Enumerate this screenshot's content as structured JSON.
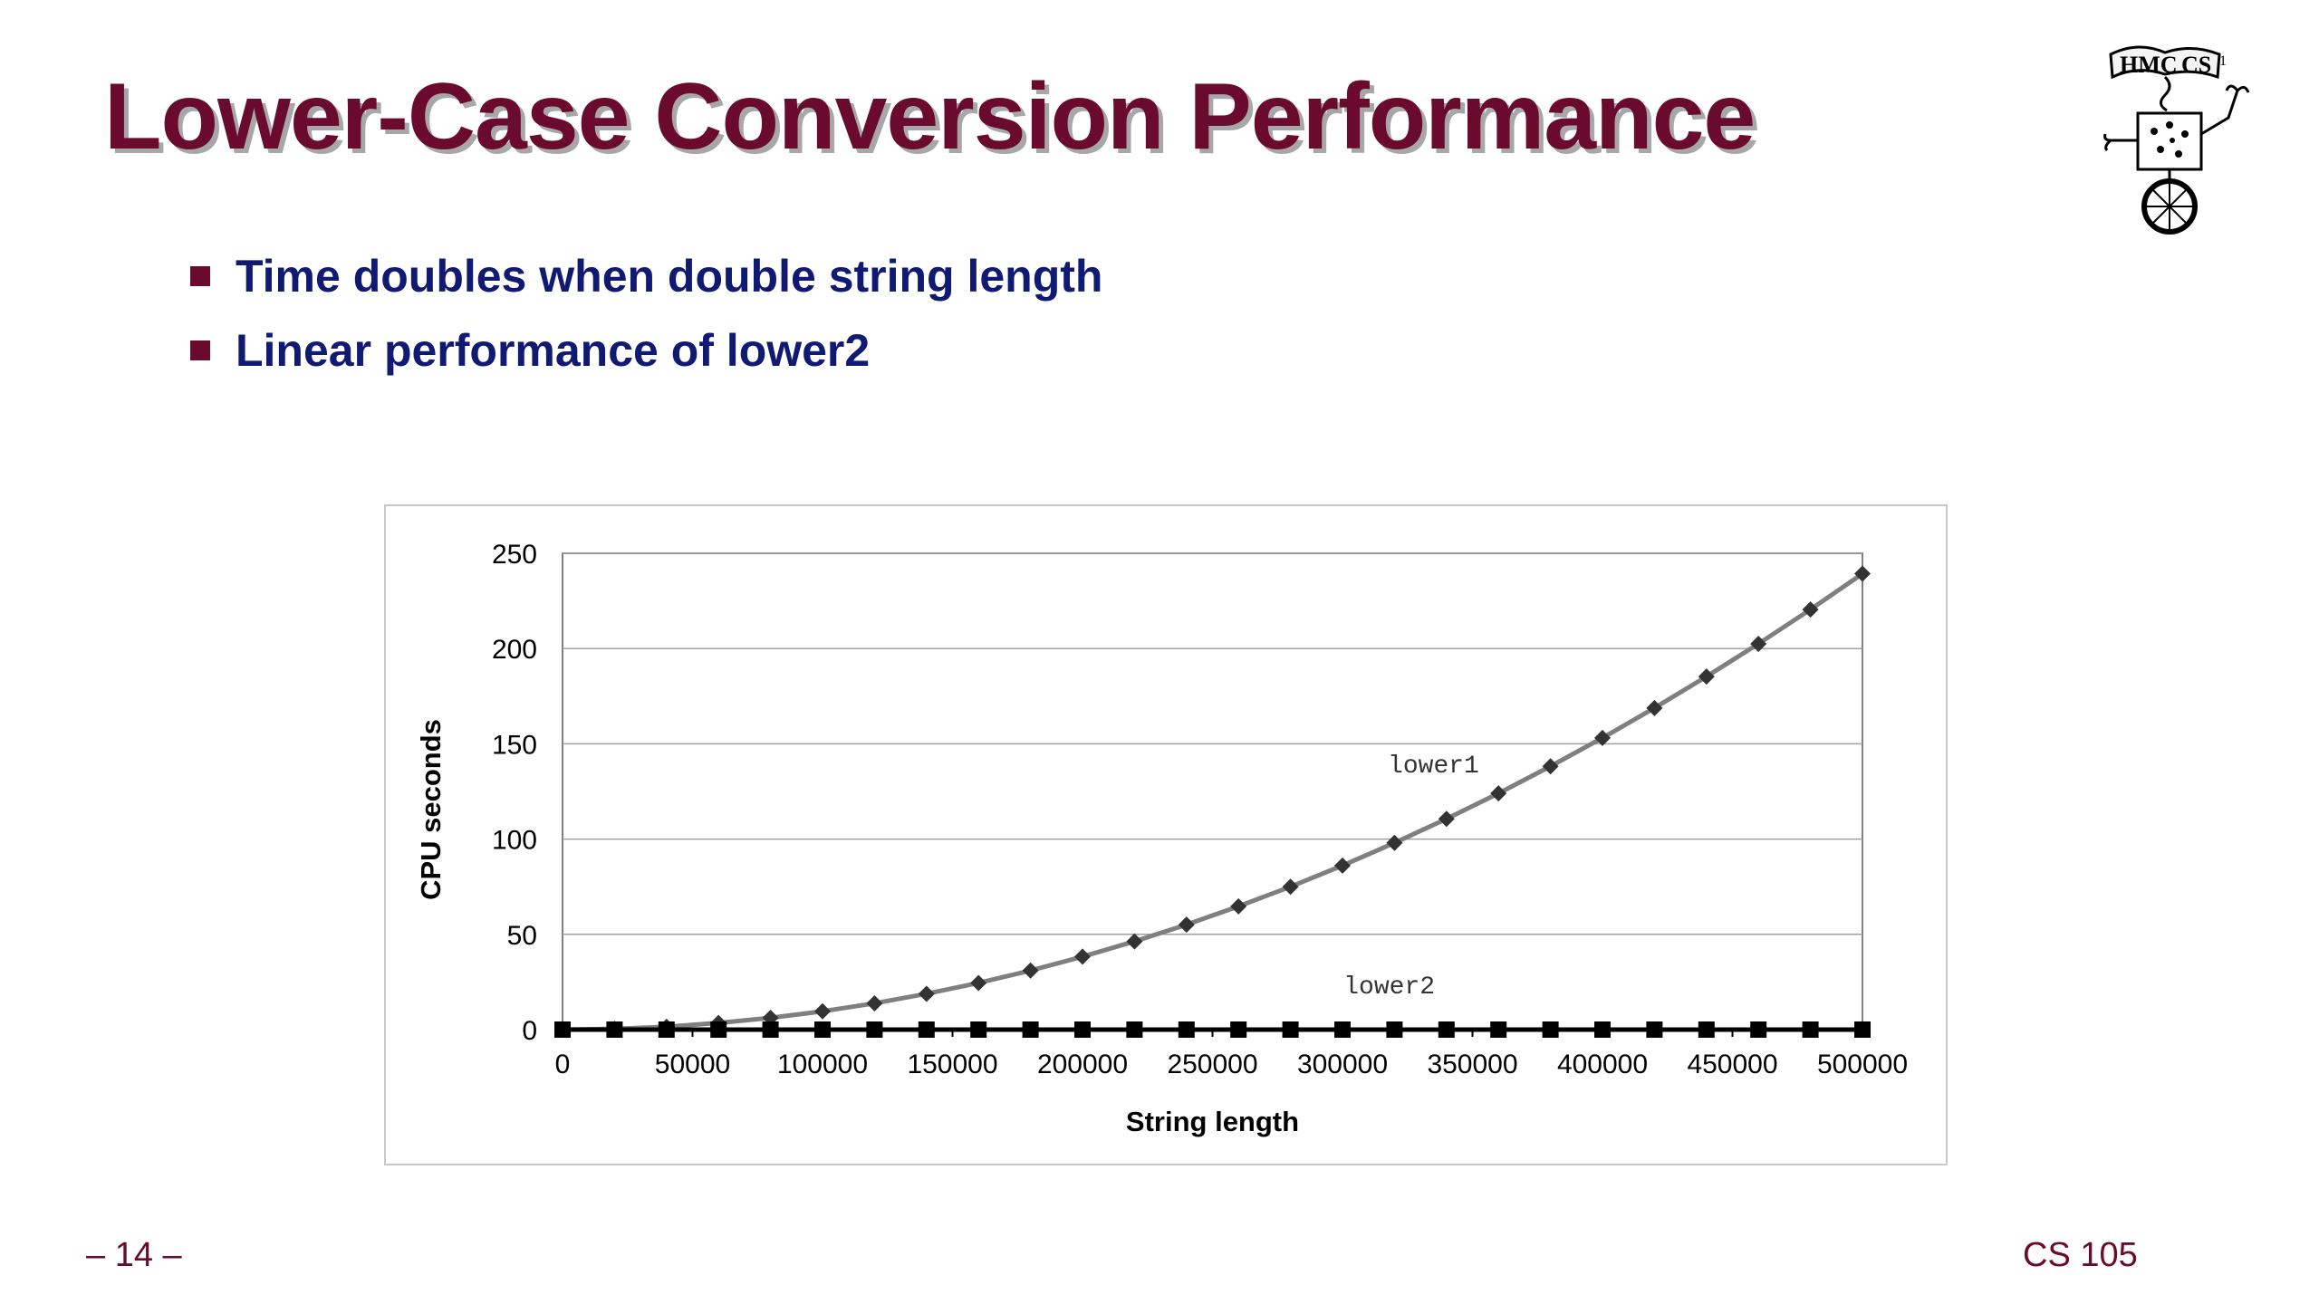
{
  "slide": {
    "title": "Lower-Case Conversion Performance",
    "bullets": [
      "Time doubles when double string length",
      "Linear performance of lower2"
    ],
    "page_number": "– 14 –",
    "course": "CS 105",
    "logo_text": "HMC CS"
  },
  "chart_data": {
    "type": "line",
    "title": "",
    "xlabel": "String length",
    "ylabel": "CPU seconds",
    "xlim": [
      0,
      500000
    ],
    "ylim": [
      0,
      250
    ],
    "x_ticks": [
      0,
      50000,
      100000,
      150000,
      200000,
      250000,
      300000,
      350000,
      400000,
      450000,
      500000
    ],
    "y_ticks": [
      0,
      50,
      100,
      150,
      200,
      250
    ],
    "grid": true,
    "legend": "none",
    "x": [
      0,
      20000,
      40000,
      60000,
      80000,
      100000,
      120000,
      140000,
      160000,
      180000,
      200000,
      220000,
      240000,
      260000,
      280000,
      300000,
      320000,
      340000,
      360000,
      380000,
      400000,
      420000,
      440000,
      460000,
      480000,
      500000
    ],
    "series": [
      {
        "name": "lower1",
        "marker": "diamond",
        "color": "#7f7f7f",
        "values": [
          0,
          0.4,
          1.5,
          3.5,
          6.2,
          9.6,
          13.8,
          18.8,
          24.5,
          31.0,
          38.3,
          46.3,
          55.1,
          64.7,
          75.0,
          86.1,
          98.0,
          110.6,
          124.0,
          138.2,
          153.1,
          168.8,
          185.3,
          202.5,
          220.5,
          239.3
        ]
      },
      {
        "name": "lower2",
        "marker": "square",
        "color": "#000000",
        "values": [
          0,
          0,
          0,
          0,
          0,
          0,
          0,
          0,
          0,
          0,
          0,
          0,
          0,
          0,
          0,
          0,
          0,
          0,
          0,
          0,
          0,
          0,
          0,
          0,
          0,
          0
        ]
      }
    ],
    "annotations": [
      {
        "text": "lower1",
        "x": 335000,
        "y": 135
      },
      {
        "text": "lower2",
        "x": 318000,
        "y": 19
      }
    ]
  }
}
